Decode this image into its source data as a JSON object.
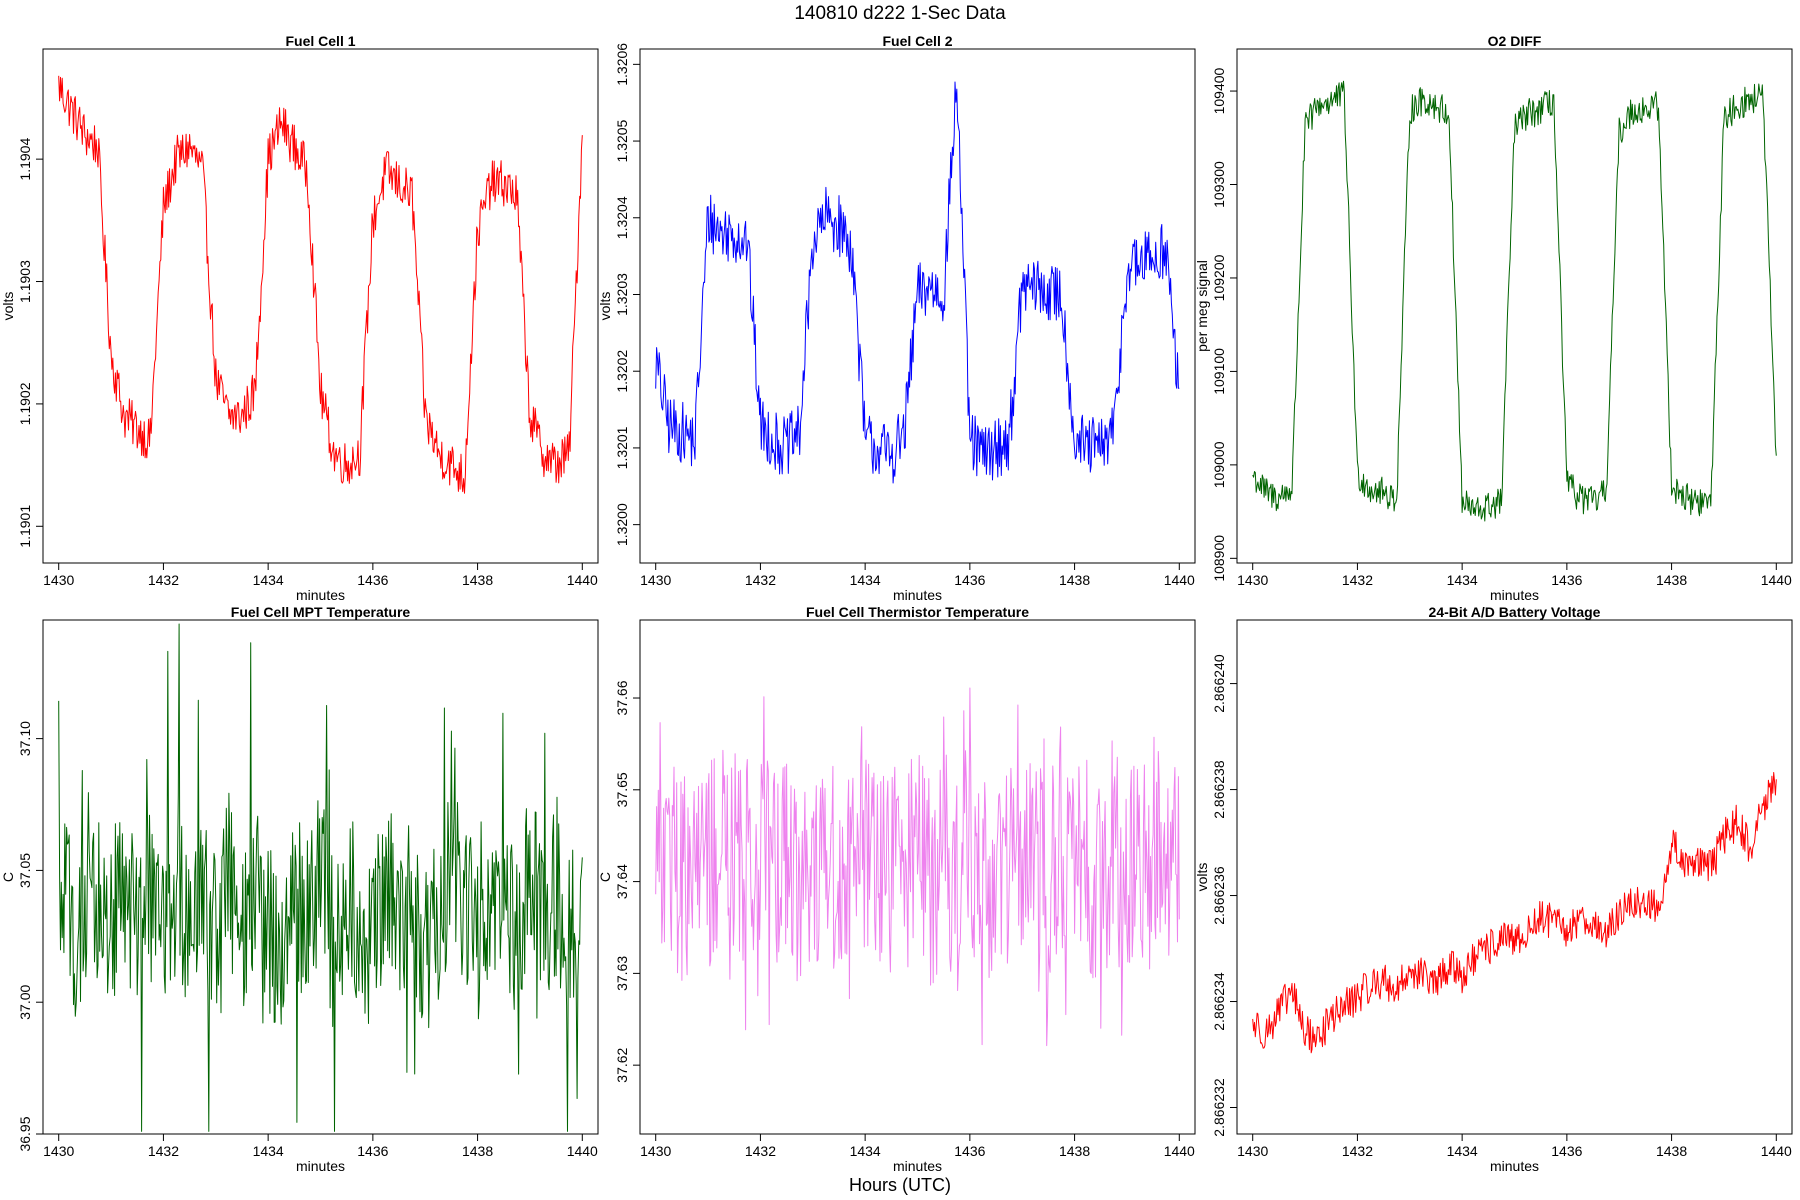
{
  "suptitle": "140810   d222   1-Sec Data",
  "bottom_label": "Hours (UTC)",
  "chart_data": [
    {
      "type": "line",
      "title": "Fuel Cell 1",
      "xlabel": "minutes",
      "ylabel": "volts",
      "color": "#ff0000",
      "xlim": [
        1429.7,
        1440.3
      ],
      "ylim": [
        1.19007,
        1.19049
      ],
      "xticks": [
        1430,
        1432,
        1434,
        1436,
        1438,
        1440
      ],
      "xtick_labels": [
        "1430",
        "1432",
        "1434",
        "1436",
        "1438",
        "1440"
      ],
      "yticks": [
        1.1901,
        1.1902,
        1.1903,
        1.1904
      ],
      "ytick_labels": [
        "1.1901",
        "1.1902",
        "1.1903",
        "1.1904"
      ],
      "series": [
        {
          "name": "Fuel Cell 1",
          "x": [
            1430.0,
            1430.25,
            1430.5,
            1430.75,
            1431.0,
            1431.25,
            1431.5,
            1431.75,
            1432.0,
            1432.25,
            1432.5,
            1432.75,
            1433.0,
            1433.25,
            1433.5,
            1433.75,
            1434.0,
            1434.25,
            1434.5,
            1434.75,
            1435.0,
            1435.25,
            1435.5,
            1435.75,
            1436.0,
            1436.25,
            1436.5,
            1436.75,
            1437.0,
            1437.25,
            1437.5,
            1437.75,
            1438.0,
            1438.25,
            1438.5,
            1438.75,
            1439.0,
            1439.25,
            1439.5,
            1439.75,
            1440.0
          ],
          "y": [
            1.19046,
            1.19044,
            1.19042,
            1.19041,
            1.19024,
            1.19019,
            1.19018,
            1.19017,
            1.19036,
            1.1904,
            1.19041,
            1.19039,
            1.19022,
            1.19019,
            1.19019,
            1.19021,
            1.1904,
            1.19043,
            1.19041,
            1.19039,
            1.19021,
            1.19016,
            1.19015,
            1.19016,
            1.19035,
            1.19039,
            1.19038,
            1.19037,
            1.19019,
            1.19016,
            1.19015,
            1.19014,
            1.19034,
            1.19038,
            1.19038,
            1.19037,
            1.19019,
            1.19016,
            1.19015,
            1.19016,
            1.19042
          ]
        }
      ]
    },
    {
      "type": "line",
      "title": "Fuel Cell 2",
      "xlabel": "minutes",
      "ylabel": "volts",
      "color": "#0000ff",
      "xlim": [
        1429.7,
        1440.3
      ],
      "ylim": [
        1.31995,
        1.32062
      ],
      "xticks": [
        1430,
        1432,
        1434,
        1436,
        1438,
        1440
      ],
      "xtick_labels": [
        "1430",
        "1432",
        "1434",
        "1436",
        "1438",
        "1440"
      ],
      "yticks": [
        1.32,
        1.3201,
        1.3202,
        1.3203,
        1.3204,
        1.3205,
        1.3206
      ],
      "ytick_labels": [
        "1.3200",
        "1.3201",
        "1.3202",
        "1.3203",
        "1.3204",
        "1.3205",
        "1.3206"
      ],
      "series": [
        {
          "name": "Fuel Cell 2",
          "x": [
            1430.0,
            1430.25,
            1430.5,
            1430.75,
            1431.0,
            1431.25,
            1431.5,
            1431.75,
            1432.0,
            1432.25,
            1432.5,
            1432.75,
            1433.0,
            1433.25,
            1433.5,
            1433.75,
            1434.0,
            1434.25,
            1434.5,
            1434.75,
            1435.0,
            1435.25,
            1435.5,
            1435.75,
            1436.0,
            1436.25,
            1436.5,
            1436.75,
            1437.0,
            1437.25,
            1437.5,
            1437.75,
            1438.0,
            1438.25,
            1438.5,
            1438.75,
            1439.0,
            1439.25,
            1439.5,
            1439.75,
            1440.0
          ],
          "y": [
            1.32021,
            1.32013,
            1.32012,
            1.32011,
            1.3204,
            1.32038,
            1.32038,
            1.32037,
            1.32013,
            1.32011,
            1.3201,
            1.32012,
            1.32037,
            1.3204,
            1.32039,
            1.32036,
            1.32011,
            1.3201,
            1.32009,
            1.32012,
            1.3203,
            1.32031,
            1.3203,
            1.32058,
            1.32011,
            1.32009,
            1.3201,
            1.32011,
            1.32031,
            1.32031,
            1.3203,
            1.3203,
            1.32011,
            1.3201,
            1.3201,
            1.32012,
            1.32033,
            1.32034,
            1.32035,
            1.32036,
            1.32016
          ]
        }
      ]
    },
    {
      "type": "line",
      "title": "O2 DIFF",
      "xlabel": "minutes",
      "ylabel": "per meg signal",
      "color": "#006400",
      "xlim": [
        1429.7,
        1440.3
      ],
      "ylim": [
        108895,
        109445
      ],
      "xticks": [
        1430,
        1432,
        1434,
        1436,
        1438,
        1440
      ],
      "xtick_labels": [
        "1430",
        "1432",
        "1434",
        "1436",
        "1438",
        "1440"
      ],
      "yticks": [
        108900,
        109000,
        109100,
        109200,
        109300,
        109400
      ],
      "ytick_labels": [
        "108900",
        "109000",
        "109100",
        "109200",
        "109300",
        "109400"
      ],
      "series": [
        {
          "name": "O2 DIFF",
          "x": [
            1430.0,
            1430.25,
            1430.5,
            1430.75,
            1431.0,
            1431.25,
            1431.5,
            1431.75,
            1432.0,
            1432.25,
            1432.5,
            1432.75,
            1433.0,
            1433.25,
            1433.5,
            1433.75,
            1434.0,
            1434.25,
            1434.5,
            1434.75,
            1435.0,
            1435.25,
            1435.5,
            1435.75,
            1436.0,
            1436.25,
            1436.5,
            1436.75,
            1437.0,
            1437.25,
            1437.5,
            1437.75,
            1438.0,
            1438.25,
            1438.5,
            1438.75,
            1439.0,
            1439.25,
            1439.5,
            1439.75,
            1440.0
          ],
          "y": [
            108990,
            108970,
            108965,
            108975,
            109360,
            109385,
            109390,
            109395,
            108990,
            108975,
            108970,
            108965,
            109380,
            109390,
            109385,
            109375,
            108960,
            108950,
            108955,
            108960,
            109360,
            109375,
            109380,
            109390,
            108980,
            108965,
            108960,
            108970,
            109355,
            109380,
            109380,
            109385,
            108980,
            108965,
            108960,
            108960,
            109370,
            109385,
            109390,
            109395,
            108995
          ]
        }
      ]
    },
    {
      "type": "line",
      "title": "Fuel Cell MPT Temperature",
      "xlabel": "minutes",
      "ylabel": "C",
      "color": "#006400",
      "xlim": [
        1429.7,
        1440.3
      ],
      "ylim": [
        36.95,
        37.145
      ],
      "xticks": [
        1430,
        1432,
        1434,
        1436,
        1438,
        1440
      ],
      "xtick_labels": [
        "1430",
        "1432",
        "1434",
        "1436",
        "1438",
        "1440"
      ],
      "yticks": [
        36.95,
        37.0,
        37.05,
        37.1
      ],
      "ytick_labels": [
        "36.95",
        "37.00",
        "37.05",
        "37.10"
      ],
      "series": [
        {
          "name": "MPT Temperature",
          "x": [
            1430.0,
            1430.25,
            1430.5,
            1430.75,
            1431.0,
            1431.25,
            1431.5,
            1431.75,
            1432.0,
            1432.25,
            1432.5,
            1432.75,
            1433.0,
            1433.25,
            1433.5,
            1433.75,
            1434.0,
            1434.25,
            1434.5,
            1434.75,
            1435.0,
            1435.25,
            1435.5,
            1435.75,
            1436.0,
            1436.25,
            1436.5,
            1436.75,
            1437.0,
            1437.25,
            1437.5,
            1437.75,
            1438.0,
            1438.25,
            1438.5,
            1438.75,
            1439.0,
            1439.25,
            1439.5,
            1439.75,
            1440.0
          ],
          "y": [
            37.04,
            37.03,
            37.02,
            37.04,
            37.03,
            37.05,
            37.02,
            37.04,
            37.03,
            37.05,
            37.02,
            37.04,
            37.03,
            37.05,
            37.02,
            37.04,
            37.03,
            37.02,
            37.04,
            37.03,
            37.05,
            37.02,
            37.04,
            37.03,
            37.02,
            37.05,
            37.03,
            37.04,
            37.02,
            37.03,
            37.05,
            37.04,
            37.02,
            37.03,
            37.04,
            37.02,
            37.05,
            37.03,
            37.04,
            37.02,
            37.04
          ]
        }
      ]
    },
    {
      "type": "line",
      "title": "Fuel Cell Thermistor Temperature",
      "xlabel": "minutes",
      "ylabel": "C",
      "color": "#ee82ee",
      "xlim": [
        1429.7,
        1440.3
      ],
      "ylim": [
        37.6125,
        37.6685
      ],
      "xticks": [
        1430,
        1432,
        1434,
        1436,
        1438,
        1440
      ],
      "xtick_labels": [
        "1430",
        "1432",
        "1434",
        "1436",
        "1438",
        "1440"
      ],
      "yticks": [
        37.62,
        37.63,
        37.64,
        37.65,
        37.66
      ],
      "ytick_labels": [
        "37.62",
        "37.63",
        "37.64",
        "37.65",
        "37.66"
      ],
      "series": [
        {
          "name": "Thermistor Temperature",
          "x": [
            1430.0,
            1430.25,
            1430.5,
            1430.75,
            1431.0,
            1431.25,
            1431.5,
            1431.75,
            1432.0,
            1432.25,
            1432.5,
            1432.75,
            1433.0,
            1433.25,
            1433.5,
            1433.75,
            1434.0,
            1434.25,
            1434.5,
            1434.75,
            1435.0,
            1435.25,
            1435.5,
            1435.75,
            1436.0,
            1436.25,
            1436.5,
            1436.75,
            1437.0,
            1437.25,
            1437.5,
            1437.75,
            1438.0,
            1438.25,
            1438.5,
            1438.75,
            1439.0,
            1439.25,
            1439.5,
            1439.75,
            1440.0
          ],
          "y": [
            37.645,
            37.642,
            37.64,
            37.643,
            37.641,
            37.644,
            37.64,
            37.642,
            37.643,
            37.641,
            37.644,
            37.64,
            37.642,
            37.643,
            37.641,
            37.642,
            37.644,
            37.64,
            37.642,
            37.641,
            37.643,
            37.64,
            37.642,
            37.641,
            37.644,
            37.64,
            37.642,
            37.643,
            37.641,
            37.642,
            37.64,
            37.643,
            37.641,
            37.642,
            37.64,
            37.643,
            37.641,
            37.642,
            37.64,
            37.642,
            37.643
          ]
        }
      ]
    },
    {
      "type": "line",
      "title": "24-Bit A/D Battery Voltage",
      "xlabel": "minutes",
      "ylabel": "volts",
      "color": "#ff0000",
      "xlim": [
        1429.7,
        1440.3
      ],
      "ylim": [
        2.8662315,
        2.8662412
      ],
      "xticks": [
        1430,
        1432,
        1434,
        1436,
        1438,
        1440
      ],
      "xtick_labels": [
        "1430",
        "1432",
        "1434",
        "1436",
        "1438",
        "1440"
      ],
      "yticks": [
        2.866232,
        2.866234,
        2.866236,
        2.866238,
        2.86624
      ],
      "ytick_labels": [
        "2.866232",
        "2.866234",
        "2.866236",
        "2.866238",
        "2.866240"
      ],
      "series": [
        {
          "name": "Battery Voltage",
          "x": [
            1430.0,
            1430.25,
            1430.5,
            1430.75,
            1431.0,
            1431.25,
            1431.5,
            1431.75,
            1432.0,
            1432.25,
            1432.5,
            1432.75,
            1433.0,
            1433.25,
            1433.5,
            1433.75,
            1434.0,
            1434.25,
            1434.5,
            1434.75,
            1435.0,
            1435.25,
            1435.5,
            1435.75,
            1436.0,
            1436.25,
            1436.5,
            1436.75,
            1437.0,
            1437.25,
            1437.5,
            1437.75,
            1438.0,
            1438.25,
            1438.5,
            1438.75,
            1439.0,
            1439.25,
            1439.5,
            1439.75,
            1440.0
          ],
          "y": [
            2.8662336,
            2.8662334,
            2.8662338,
            2.8662342,
            2.8662334,
            2.8662333,
            2.8662337,
            2.8662339,
            2.8662341,
            2.8662343,
            2.8662344,
            2.8662342,
            2.8662346,
            2.8662345,
            2.8662343,
            2.8662347,
            2.8662345,
            2.8662348,
            2.866235,
            2.8662352,
            2.8662351,
            2.8662353,
            2.8662356,
            2.8662355,
            2.8662353,
            2.8662356,
            2.8662355,
            2.8662352,
            2.8662357,
            2.8662358,
            2.8662359,
            2.8662357,
            2.866237,
            2.8662366,
            2.8662367,
            2.8662365,
            2.8662371,
            2.8662374,
            2.8662369,
            2.8662377,
            2.8662381
          ]
        }
      ]
    }
  ]
}
